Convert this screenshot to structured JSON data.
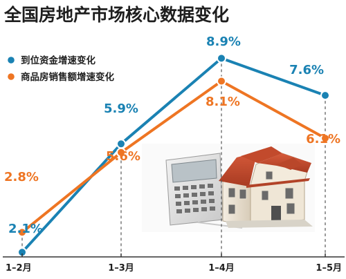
{
  "chart_data": {
    "type": "line",
    "title": "全国房地产市场核心数据变化",
    "categories": [
      "1–2月",
      "1–3月",
      "1–4月",
      "1–5月"
    ],
    "series": [
      {
        "name": "到位资金增速变化",
        "color": "#1a82b3",
        "values": [
          2.1,
          5.9,
          8.9,
          7.6
        ],
        "labels": [
          "2.1%",
          "5.9%",
          "8.9%",
          "7.6%"
        ]
      },
      {
        "name": "商品房销售额增速变化",
        "color": "#ee7523",
        "values": [
          2.8,
          5.6,
          8.1,
          6.1
        ],
        "labels": [
          "2.8%",
          "5.6%",
          "8.1%",
          "6.1%"
        ]
      }
    ],
    "xlabel": "",
    "ylabel": "",
    "legend_position": "top-left",
    "grid": false,
    "illustration": "house-and-calculator"
  }
}
